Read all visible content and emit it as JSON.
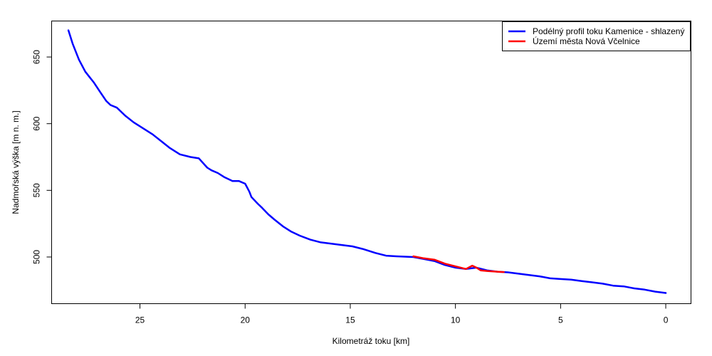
{
  "chart_data": {
    "type": "line",
    "title": "",
    "xlabel": "Kilometráž toku [km]",
    "ylabel": "Nadmořská výška [m n. m.]",
    "xlim": [
      29.2,
      -1.2
    ],
    "ylim": [
      465,
      677
    ],
    "x_reversed": true,
    "x_ticks": [
      25,
      20,
      15,
      10,
      5,
      0
    ],
    "y_ticks": [
      500,
      550,
      600,
      650
    ],
    "grid": false,
    "legend_position": "top-right",
    "series": [
      {
        "name": "Podélný profil toku Kamenice - shlazený",
        "color": "#0000FF",
        "x": [
          28.4,
          28.2,
          27.9,
          27.6,
          27.2,
          26.9,
          26.6,
          26.4,
          26.1,
          25.7,
          25.3,
          24.8,
          24.4,
          24.0,
          23.6,
          23.1,
          22.6,
          22.2,
          21.8,
          21.6,
          21.3,
          21.0,
          20.6,
          20.3,
          20.0,
          19.8,
          19.7,
          19.4,
          19.2,
          18.9,
          18.6,
          18.2,
          17.8,
          17.4,
          16.9,
          16.4,
          15.9,
          15.4,
          14.9,
          14.4,
          13.8,
          13.3,
          12.8,
          12.0,
          11.5,
          11.0,
          10.5,
          10.0,
          9.5,
          9.0,
          8.5,
          8.0,
          7.5,
          7.0,
          6.5,
          6.0,
          5.5,
          5.0,
          4.5,
          4.0,
          3.5,
          3.0,
          2.5,
          2.0,
          1.5,
          1.0,
          0.5,
          0.0
        ],
        "y": [
          670,
          660,
          648,
          639,
          631,
          624,
          617,
          614,
          612,
          606,
          601,
          596,
          592,
          587,
          582,
          577,
          575,
          574,
          567,
          565,
          563,
          560,
          557,
          557,
          555,
          549,
          545,
          540,
          537,
          532,
          528,
          523,
          519,
          516,
          513,
          511,
          510,
          509,
          508,
          506,
          503,
          501,
          500.5,
          500,
          498.5,
          497,
          494,
          492,
          491,
          492,
          490,
          489,
          488.5,
          487.5,
          486.5,
          485.5,
          484,
          483.5,
          483,
          482,
          481,
          480,
          478.5,
          478,
          476.5,
          475.5,
          474,
          473
        ]
      },
      {
        "name": "Území města Nová Včelnice",
        "color": "#FF0000",
        "x": [
          12.0,
          11.5,
          11.0,
          10.5,
          10.0,
          9.5,
          9.2,
          9.0,
          8.8,
          8.5,
          8.0,
          7.7
        ],
        "y": [
          500.5,
          499,
          498,
          495,
          493,
          491,
          493.5,
          492,
          490,
          489.5,
          489,
          488.7
        ]
      }
    ]
  }
}
